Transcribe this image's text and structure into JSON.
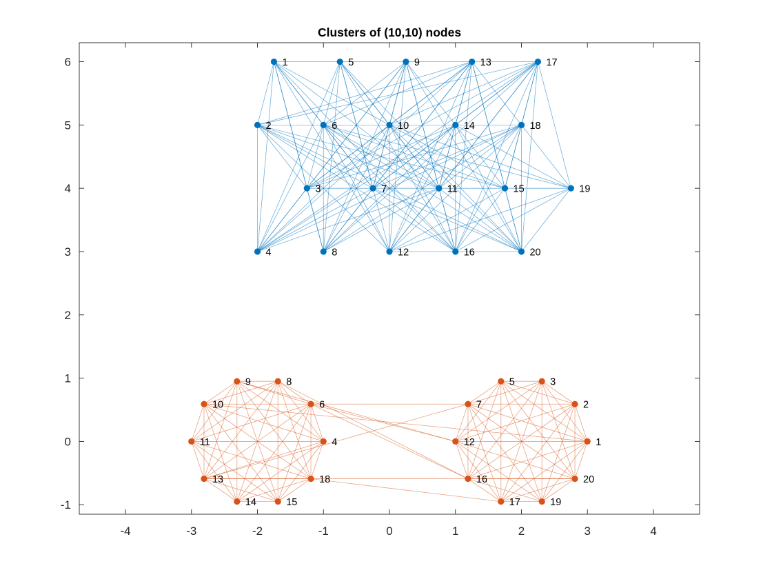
{
  "chart_data": {
    "type": "scatter",
    "title": "Clusters of (10,10) nodes",
    "xlabel": "",
    "ylabel": "",
    "xlim": [
      -4.7,
      4.7
    ],
    "ylim": [
      -1.15,
      6.3
    ],
    "x_ticks": [
      -4,
      -3,
      -2,
      -1,
      0,
      1,
      2,
      3,
      4
    ],
    "y_ticks": [
      -1,
      0,
      1,
      2,
      3,
      4,
      5,
      6
    ],
    "grid": false,
    "legend": "none",
    "graphs": [
      {
        "color": "#0072BD",
        "nodes": [
          {
            "id": "1",
            "x": -1.75,
            "y": 6
          },
          {
            "id": "2",
            "x": -2.0,
            "y": 5
          },
          {
            "id": "3",
            "x": -1.25,
            "y": 4
          },
          {
            "id": "4",
            "x": -2.0,
            "y": 3
          },
          {
            "id": "5",
            "x": -0.75,
            "y": 6
          },
          {
            "id": "6",
            "x": -1.0,
            "y": 5
          },
          {
            "id": "7",
            "x": -0.25,
            "y": 4
          },
          {
            "id": "8",
            "x": -1.0,
            "y": 3
          },
          {
            "id": "9",
            "x": 0.25,
            "y": 6
          },
          {
            "id": "10",
            "x": 0.0,
            "y": 5
          },
          {
            "id": "11",
            "x": 0.75,
            "y": 4
          },
          {
            "id": "12",
            "x": 0.0,
            "y": 3
          },
          {
            "id": "13",
            "x": 1.25,
            "y": 6
          },
          {
            "id": "14",
            "x": 1.0,
            "y": 5
          },
          {
            "id": "15",
            "x": 1.75,
            "y": 4
          },
          {
            "id": "16",
            "x": 1.0,
            "y": 3
          },
          {
            "id": "17",
            "x": 2.25,
            "y": 6
          },
          {
            "id": "18",
            "x": 2.0,
            "y": 5
          },
          {
            "id": "19",
            "x": 2.75,
            "y": 4
          },
          {
            "id": "20",
            "x": 2.0,
            "y": 3
          }
        ],
        "edges": [
          [
            1,
            5
          ],
          [
            5,
            9
          ],
          [
            9,
            13
          ],
          [
            13,
            17
          ],
          [
            6,
            10
          ],
          [
            10,
            14
          ],
          [
            14,
            18
          ],
          [
            3,
            7
          ],
          [
            7,
            11
          ],
          [
            11,
            15
          ],
          [
            15,
            19
          ],
          [
            12,
            16
          ],
          [
            16,
            20
          ],
          [
            2,
            6
          ],
          [
            1,
            2
          ],
          [
            1,
            3
          ],
          [
            1,
            4
          ],
          [
            1,
            6
          ],
          [
            1,
            7
          ],
          [
            1,
            8
          ],
          [
            1,
            10
          ],
          [
            1,
            11
          ],
          [
            1,
            12
          ],
          [
            1,
            16
          ],
          [
            2,
            3
          ],
          [
            2,
            4
          ],
          [
            2,
            7
          ],
          [
            2,
            11
          ],
          [
            2,
            12
          ],
          [
            2,
            15
          ],
          [
            2,
            16
          ],
          [
            2,
            20
          ],
          [
            2,
            13
          ],
          [
            2,
            17
          ],
          [
            3,
            4
          ],
          [
            3,
            6
          ],
          [
            3,
            8
          ],
          [
            3,
            10
          ],
          [
            3,
            13
          ],
          [
            3,
            14
          ],
          [
            3,
            17
          ],
          [
            3,
            18
          ],
          [
            3,
            9
          ],
          [
            4,
            6
          ],
          [
            4,
            7
          ],
          [
            4,
            9
          ],
          [
            4,
            10
          ],
          [
            4,
            11
          ],
          [
            4,
            13
          ],
          [
            4,
            14
          ],
          [
            4,
            17
          ],
          [
            4,
            18
          ],
          [
            4,
            5
          ],
          [
            5,
            6
          ],
          [
            5,
            7
          ],
          [
            5,
            8
          ],
          [
            5,
            10
          ],
          [
            5,
            11
          ],
          [
            5,
            12
          ],
          [
            5,
            16
          ],
          [
            5,
            20
          ],
          [
            6,
            7
          ],
          [
            6,
            8
          ],
          [
            6,
            11
          ],
          [
            6,
            12
          ],
          [
            6,
            15
          ],
          [
            6,
            16
          ],
          [
            6,
            19
          ],
          [
            6,
            20
          ],
          [
            6,
            9
          ],
          [
            6,
            13
          ],
          [
            7,
            8
          ],
          [
            7,
            9
          ],
          [
            7,
            10
          ],
          [
            7,
            13
          ],
          [
            7,
            14
          ],
          [
            7,
            16
          ],
          [
            7,
            17
          ],
          [
            7,
            18
          ],
          [
            7,
            20
          ],
          [
            8,
            9
          ],
          [
            8,
            10
          ],
          [
            8,
            11
          ],
          [
            8,
            13
          ],
          [
            8,
            14
          ],
          [
            8,
            17
          ],
          [
            8,
            18
          ],
          [
            9,
            10
          ],
          [
            9,
            11
          ],
          [
            9,
            12
          ],
          [
            9,
            16
          ],
          [
            9,
            20
          ],
          [
            9,
            14
          ],
          [
            10,
            11
          ],
          [
            10,
            12
          ],
          [
            10,
            15
          ],
          [
            10,
            16
          ],
          [
            10,
            19
          ],
          [
            10,
            20
          ],
          [
            10,
            13
          ],
          [
            10,
            17
          ],
          [
            11,
            12
          ],
          [
            11,
            13
          ],
          [
            11,
            14
          ],
          [
            11,
            17
          ],
          [
            11,
            18
          ],
          [
            11,
            16
          ],
          [
            11,
            20
          ],
          [
            12,
            13
          ],
          [
            12,
            14
          ],
          [
            12,
            17
          ],
          [
            12,
            18
          ],
          [
            12,
            15
          ],
          [
            12,
            19
          ],
          [
            13,
            14
          ],
          [
            13,
            15
          ],
          [
            13,
            16
          ],
          [
            13,
            20
          ],
          [
            13,
            18
          ],
          [
            14,
            15
          ],
          [
            14,
            16
          ],
          [
            14,
            19
          ],
          [
            14,
            20
          ],
          [
            14,
            17
          ],
          [
            15,
            17
          ],
          [
            15,
            18
          ],
          [
            15,
            20
          ],
          [
            15,
            16
          ],
          [
            16,
            17
          ],
          [
            16,
            18
          ],
          [
            16,
            19
          ],
          [
            17,
            18
          ],
          [
            17,
            19
          ],
          [
            17,
            20
          ],
          [
            18,
            19
          ],
          [
            18,
            20
          ],
          [
            19,
            20
          ]
        ]
      },
      {
        "color": "#D95319",
        "nodes": [
          {
            "id": "1",
            "x": 3.0,
            "y": 0.0
          },
          {
            "id": "2",
            "x": 2.81,
            "y": 0.59
          },
          {
            "id": "3",
            "x": 2.31,
            "y": 0.95
          },
          {
            "id": "5",
            "x": 1.69,
            "y": 0.95
          },
          {
            "id": "7",
            "x": 1.19,
            "y": 0.59
          },
          {
            "id": "12",
            "x": 1.0,
            "y": 0.0
          },
          {
            "id": "16",
            "x": 1.19,
            "y": -0.59
          },
          {
            "id": "17",
            "x": 1.69,
            "y": -0.95
          },
          {
            "id": "19",
            "x": 2.31,
            "y": -0.95
          },
          {
            "id": "20",
            "x": 2.81,
            "y": -0.59
          },
          {
            "id": "4",
            "x": -1.0,
            "y": 0.0
          },
          {
            "id": "6",
            "x": -1.19,
            "y": 0.59
          },
          {
            "id": "8",
            "x": -1.69,
            "y": 0.95
          },
          {
            "id": "9",
            "x": -2.31,
            "y": 0.95
          },
          {
            "id": "10",
            "x": -2.81,
            "y": 0.59
          },
          {
            "id": "11",
            "x": -3.0,
            "y": 0.0
          },
          {
            "id": "13",
            "x": -2.81,
            "y": -0.59
          },
          {
            "id": "14",
            "x": -2.31,
            "y": -0.95
          },
          {
            "id": "15",
            "x": -1.69,
            "y": -0.95
          },
          {
            "id": "18",
            "x": -1.19,
            "y": -0.59
          }
        ],
        "edges": [
          [
            1,
            2
          ],
          [
            1,
            3
          ],
          [
            1,
            5
          ],
          [
            1,
            7
          ],
          [
            1,
            12
          ],
          [
            1,
            16
          ],
          [
            1,
            17
          ],
          [
            1,
            19
          ],
          [
            1,
            20
          ],
          [
            2,
            3
          ],
          [
            2,
            5
          ],
          [
            2,
            7
          ],
          [
            2,
            12
          ],
          [
            2,
            16
          ],
          [
            2,
            17
          ],
          [
            2,
            19
          ],
          [
            2,
            20
          ],
          [
            3,
            5
          ],
          [
            3,
            7
          ],
          [
            3,
            12
          ],
          [
            3,
            16
          ],
          [
            3,
            17
          ],
          [
            3,
            19
          ],
          [
            3,
            20
          ],
          [
            5,
            7
          ],
          [
            5,
            12
          ],
          [
            5,
            16
          ],
          [
            5,
            17
          ],
          [
            5,
            19
          ],
          [
            5,
            20
          ],
          [
            7,
            12
          ],
          [
            7,
            16
          ],
          [
            7,
            17
          ],
          [
            7,
            19
          ],
          [
            7,
            20
          ],
          [
            12,
            16
          ],
          [
            12,
            17
          ],
          [
            12,
            19
          ],
          [
            12,
            20
          ],
          [
            16,
            17
          ],
          [
            16,
            19
          ],
          [
            16,
            20
          ],
          [
            17,
            19
          ],
          [
            17,
            20
          ],
          [
            19,
            20
          ],
          [
            4,
            6
          ],
          [
            4,
            8
          ],
          [
            4,
            9
          ],
          [
            4,
            10
          ],
          [
            4,
            11
          ],
          [
            4,
            13
          ],
          [
            4,
            14
          ],
          [
            4,
            15
          ],
          [
            4,
            18
          ],
          [
            6,
            8
          ],
          [
            6,
            9
          ],
          [
            6,
            10
          ],
          [
            6,
            11
          ],
          [
            6,
            13
          ],
          [
            6,
            14
          ],
          [
            6,
            15
          ],
          [
            6,
            18
          ],
          [
            8,
            9
          ],
          [
            8,
            10
          ],
          [
            8,
            11
          ],
          [
            8,
            13
          ],
          [
            8,
            14
          ],
          [
            8,
            15
          ],
          [
            8,
            18
          ],
          [
            9,
            10
          ],
          [
            9,
            11
          ],
          [
            9,
            13
          ],
          [
            9,
            14
          ],
          [
            9,
            15
          ],
          [
            9,
            18
          ],
          [
            10,
            11
          ],
          [
            10,
            13
          ],
          [
            10,
            14
          ],
          [
            10,
            15
          ],
          [
            10,
            18
          ],
          [
            11,
            13
          ],
          [
            11,
            14
          ],
          [
            11,
            15
          ],
          [
            11,
            18
          ],
          [
            13,
            14
          ],
          [
            13,
            15
          ],
          [
            13,
            18
          ],
          [
            14,
            15
          ],
          [
            14,
            18
          ],
          [
            15,
            18
          ],
          [
            6,
            7
          ],
          [
            6,
            12
          ],
          [
            6,
            16
          ],
          [
            8,
            16
          ],
          [
            9,
            12
          ],
          [
            10,
            1
          ],
          [
            13,
            7
          ],
          [
            13,
            20
          ],
          [
            18,
            17
          ]
        ]
      }
    ]
  }
}
